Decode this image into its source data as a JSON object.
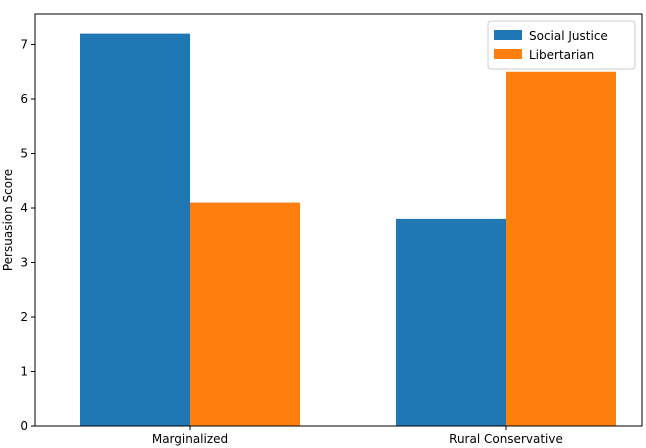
{
  "chart_data": {
    "type": "bar",
    "title": "",
    "xlabel": "",
    "ylabel": "Persuasion Score",
    "categories": [
      "Marginalized",
      "Rural Conservative"
    ],
    "series": [
      {
        "name": "Social Justice",
        "values": [
          7.2,
          3.8
        ],
        "color": "#1f77b4"
      },
      {
        "name": "Libertarian",
        "values": [
          4.1,
          6.5
        ],
        "color": "#ff7f0e"
      }
    ],
    "ylim": [
      0,
      7.56
    ],
    "yticks": [
      0,
      1,
      2,
      3,
      4,
      5,
      6,
      7
    ],
    "grid": false,
    "legend_position": "top-right"
  }
}
